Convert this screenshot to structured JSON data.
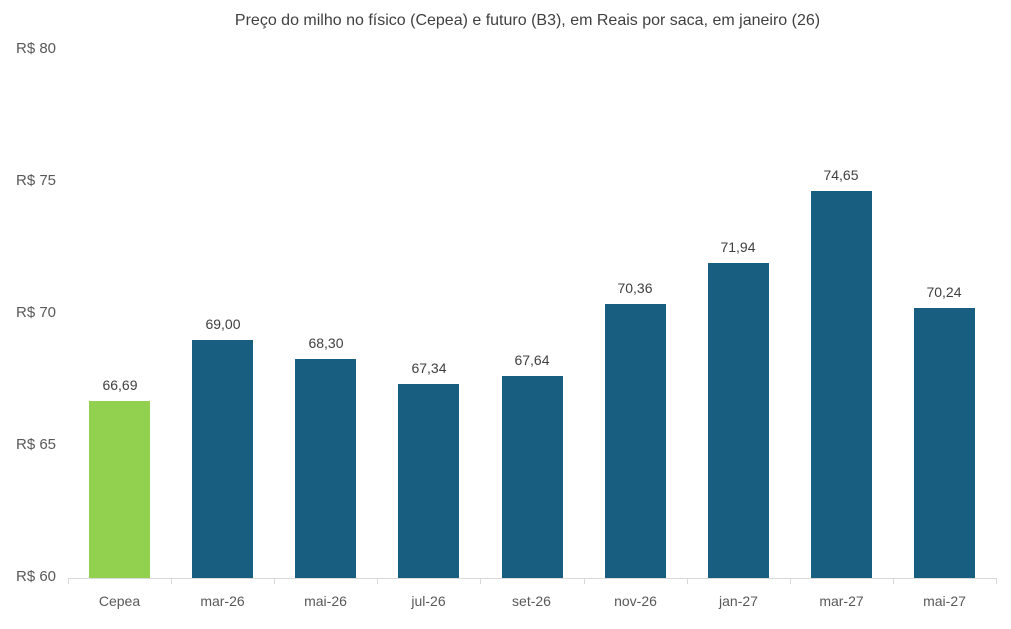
{
  "chart_data": {
    "type": "bar",
    "title": "Preço do milho no físico (Cepea) e futuro (B3), em Reais por saca, em janeiro (26)",
    "xlabel": "",
    "ylabel": "",
    "categories": [
      "Cepea",
      "mar-26",
      "mai-26",
      "jul-26",
      "set-26",
      "nov-26",
      "jan-27",
      "mar-27",
      "mai-27"
    ],
    "values": [
      66.69,
      69.0,
      68.3,
      67.34,
      67.64,
      70.36,
      71.94,
      74.65,
      70.24
    ],
    "value_labels": [
      "66,69",
      "69,00",
      "68,30",
      "67,34",
      "67,64",
      "70,36",
      "71,94",
      "74,65",
      "70,24"
    ],
    "bar_colors": [
      "#92d050",
      "#175e80",
      "#175e80",
      "#175e80",
      "#175e80",
      "#175e80",
      "#175e80",
      "#175e80",
      "#175e80"
    ],
    "ylim": [
      60,
      80
    ],
    "yticks": [
      60,
      65,
      70,
      75,
      80
    ],
    "ytick_labels": [
      "R$ 60",
      "R$ 65",
      "R$ 70",
      "R$ 75",
      "R$ 80"
    ],
    "grid": false,
    "legend": null
  }
}
